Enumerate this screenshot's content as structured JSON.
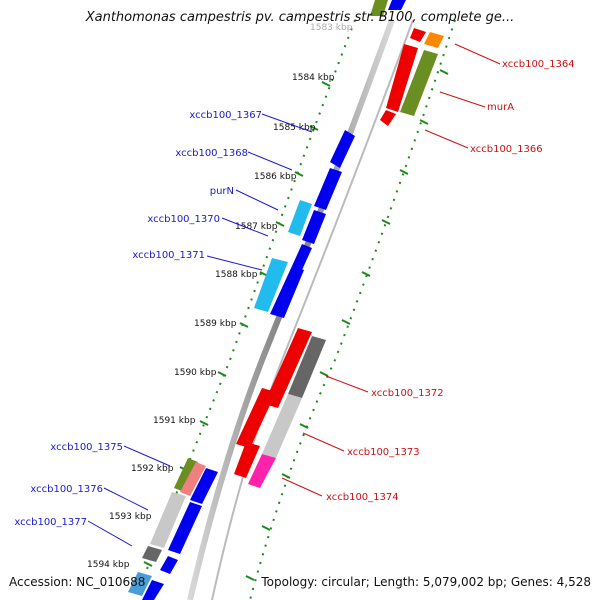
{
  "title": "Xanthomonas campestris pv. campestris str. B100, complete ge...",
  "footer": {
    "accession": "Accession: NC_010688",
    "summary": "Topology: circular; Length: 5,079,002 bp; Genes: 4,528"
  },
  "kbp_ticks": [
    "1583 kbp",
    "1584 kbp",
    "1585 kbp",
    "1586 kbp",
    "1587 kbp",
    "1588 kbp",
    "1589 kbp",
    "1590 kbp",
    "1591 kbp",
    "1592 kbp",
    "1593 kbp",
    "1594 kbp"
  ],
  "left_labels": [
    "xccb100_1367",
    "xccb100_1368",
    "purN",
    "xccb100_1370",
    "xccb100_1371",
    "xccb100_1375",
    "xccb100_1376",
    "xccb100_1377"
  ],
  "right_labels": [
    "xccb100_1364",
    "murA",
    "xccb100_1366",
    "xccb100_1372",
    "xccb100_1373",
    "xccb100_1374"
  ],
  "colors": {
    "label_blue": "#1a1acc",
    "label_red": "#cc1111",
    "tick_green": "#1a8a1a",
    "gene_blue": "#0000ee",
    "gene_red": "#ee0000",
    "gene_olive": "#6b8e23",
    "gene_cyan": "#22bbee",
    "gene_gray": "#666666",
    "gene_lightgray": "#c8c8c8",
    "gene_pink": "#ff22aa",
    "gene_orange": "#ff8800",
    "gene_salmon": "#f08080",
    "backbone": "#888888"
  }
}
